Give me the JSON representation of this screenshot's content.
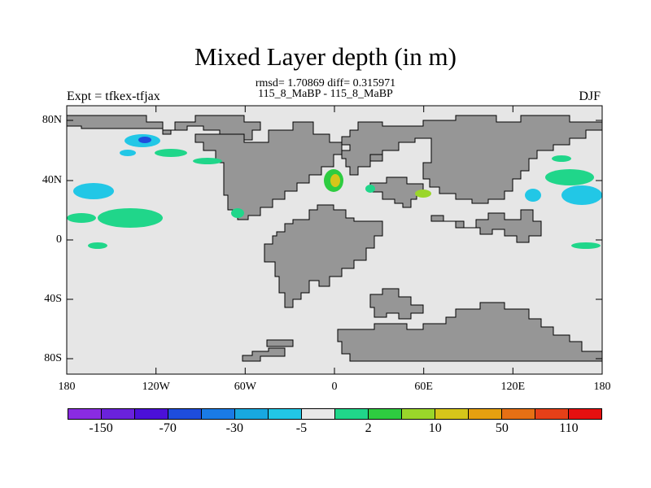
{
  "title": "Mixed Layer depth (in m)",
  "stats_line1": "rmsd= 1.70869 diff= 0.315971",
  "stats_line2": "115_8_MaBP - 115_8_MaBP",
  "left_label": "Expt = tfkex-tfjax",
  "right_label": "DJF",
  "colors": {
    "ocean": "#e6e6e6",
    "land": "#969696"
  },
  "lat_ticks": [
    "80N",
    "40N",
    "0",
    "40S",
    "80S"
  ],
  "lon_ticks": [
    "180",
    "120W",
    "60W",
    "0",
    "60E",
    "120E",
    "180"
  ],
  "colorbar": {
    "colors": [
      "#8a2be2",
      "#6a22dc",
      "#4b10d8",
      "#1e4ddd",
      "#1a7be6",
      "#18a8e0",
      "#22c7e6",
      "#e8e8e8",
      "#20d68a",
      "#2ecc40",
      "#9ad62a",
      "#d6c51a",
      "#e6a010",
      "#e67014",
      "#e64018",
      "#e61010"
    ],
    "labels": [
      "-150",
      "-70",
      "-30",
      "-5",
      "2",
      "10",
      "50",
      "110"
    ]
  }
}
